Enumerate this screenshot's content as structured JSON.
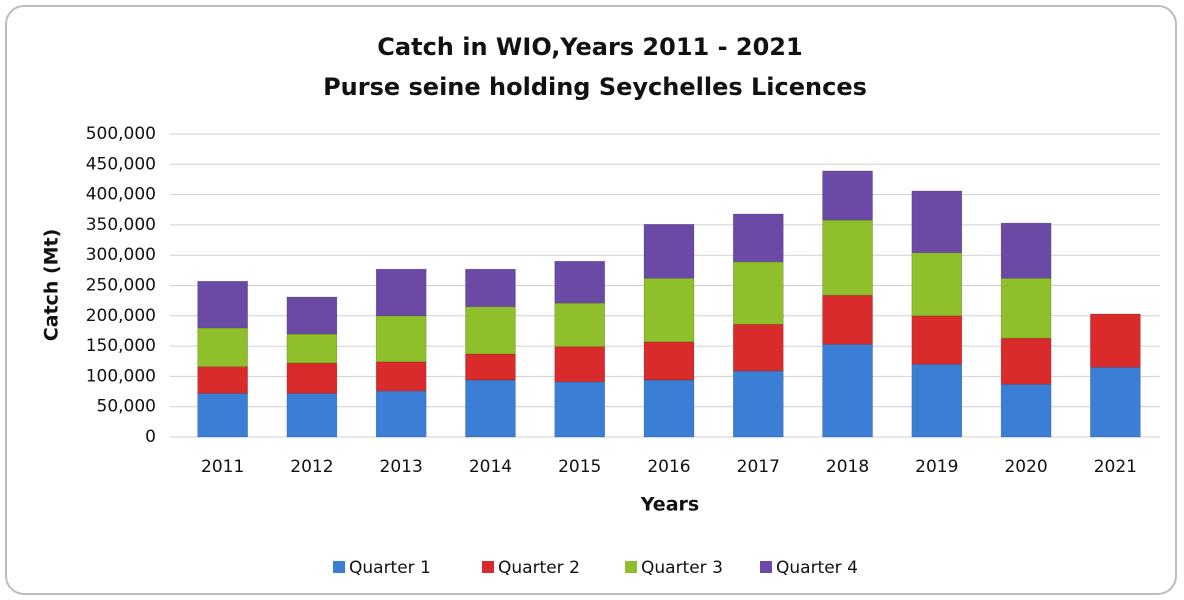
{
  "chart_data": {
    "type": "stacked_bar",
    "title": "Catch in WIO,Years 2011 - 2021",
    "subtitle": "Purse seine holding Seychelles Licences",
    "x_label": "Years",
    "y_label": "Catch (Mt)",
    "categories": [
      "2011",
      "2012",
      "2013",
      "2014",
      "2015",
      "2016",
      "2017",
      "2018",
      "2019",
      "2020",
      "2021"
    ],
    "series": [
      {
        "name": "Quarter 1",
        "color": "#3a7fd5",
        "values": [
          72000,
          72000,
          76000,
          94000,
          91000,
          94000,
          109000,
          153000,
          120000,
          87000,
          115000
        ]
      },
      {
        "name": "Quarter 2",
        "color": "#d92b2b",
        "values": [
          44000,
          50000,
          48000,
          43000,
          58000,
          63000,
          77000,
          81000,
          80000,
          76000,
          88000
        ]
      },
      {
        "name": "Quarter 3",
        "color": "#8fbf2a",
        "values": [
          64000,
          48000,
          76000,
          78000,
          72000,
          105000,
          103000,
          124000,
          104000,
          99000,
          null
        ]
      },
      {
        "name": "Quarter 4",
        "color": "#6a4aa5",
        "values": [
          77000,
          61000,
          77000,
          62000,
          69000,
          89000,
          79000,
          81000,
          102000,
          91000,
          null
        ]
      }
    ],
    "ylim": [
      0,
      500000
    ],
    "yticks": [
      0,
      {
        "value": 50000,
        "label": "50,000"
      },
      {
        "value": 100000,
        "label": "100,000"
      },
      {
        "value": 150000,
        "label": "150,000"
      },
      {
        "value": 200000,
        "label": "200,000"
      },
      {
        "value": 250000,
        "label": "250,000"
      },
      {
        "value": 300000,
        "label": "300,000"
      },
      {
        "value": 350000,
        "label": "350,000"
      },
      {
        "value": 400000,
        "label": "400,000"
      },
      {
        "value": 450000,
        "label": "450,000"
      },
      {
        "value": 500000,
        "label": "500,000"
      }
    ],
    "grid": true,
    "legend": "bottom"
  }
}
